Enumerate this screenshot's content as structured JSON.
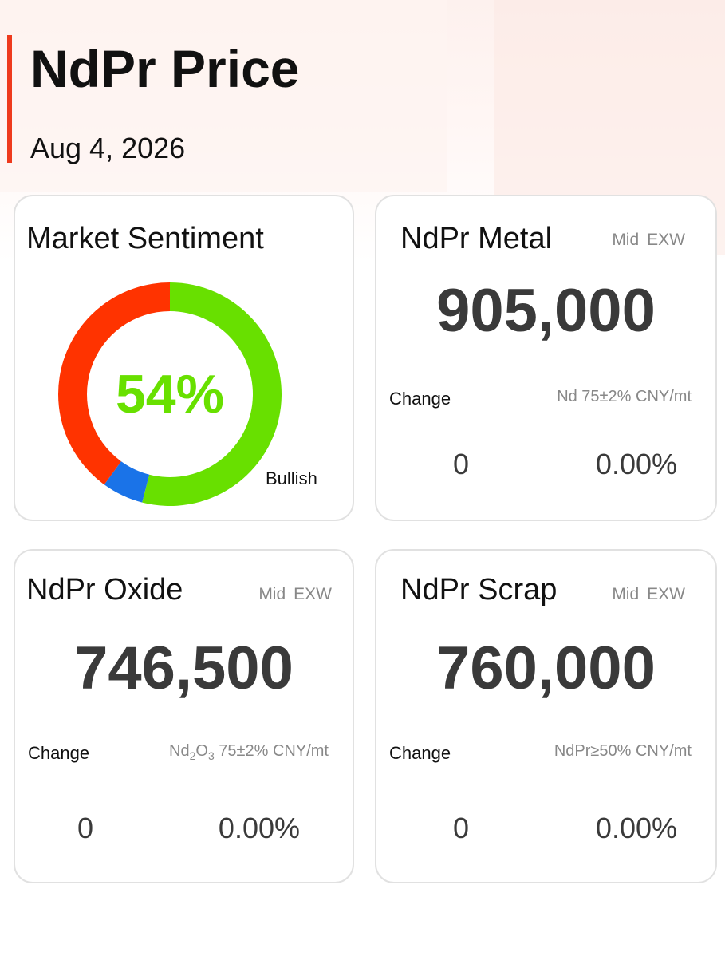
{
  "page": {
    "title": "NdPr Price",
    "date": "Aug 4, 2026"
  },
  "sentiment": {
    "title": "Market Sentiment",
    "percent_label": "54%",
    "bullish_label": "Bullish",
    "bullish_pct": 54,
    "neutral_pct": 6,
    "bearish_pct": 40,
    "colors": {
      "bullish": "#68e000",
      "neutral": "#1a73e8",
      "bearish": "#ff3300"
    }
  },
  "metal": {
    "title": "NdPr Metal",
    "mid": "Mid",
    "exw": "EXW",
    "price": "905,000",
    "change_label": "Change",
    "spec": "Nd 75±2% CNY/mt",
    "change": "0",
    "change_pct": "0.00%"
  },
  "oxide": {
    "title": "NdPr Oxide",
    "mid": "Mid",
    "exw": "EXW",
    "price": "746,500",
    "change_label": "Change",
    "spec_prefix": "Nd",
    "spec_sub1": "2",
    "spec_mid": "O",
    "spec_sub2": "3",
    "spec_suffix": " 75±2% CNY/mt",
    "change": "0",
    "change_pct": "0.00%"
  },
  "scrap": {
    "title": "NdPr Scrap",
    "mid": "Mid",
    "exw": "EXW",
    "price": "760,000",
    "change_label": "Change",
    "spec": "NdPr≥50% CNY/mt",
    "change": "0",
    "change_pct": "0.00%"
  },
  "accent_color": "#ee3a1d"
}
